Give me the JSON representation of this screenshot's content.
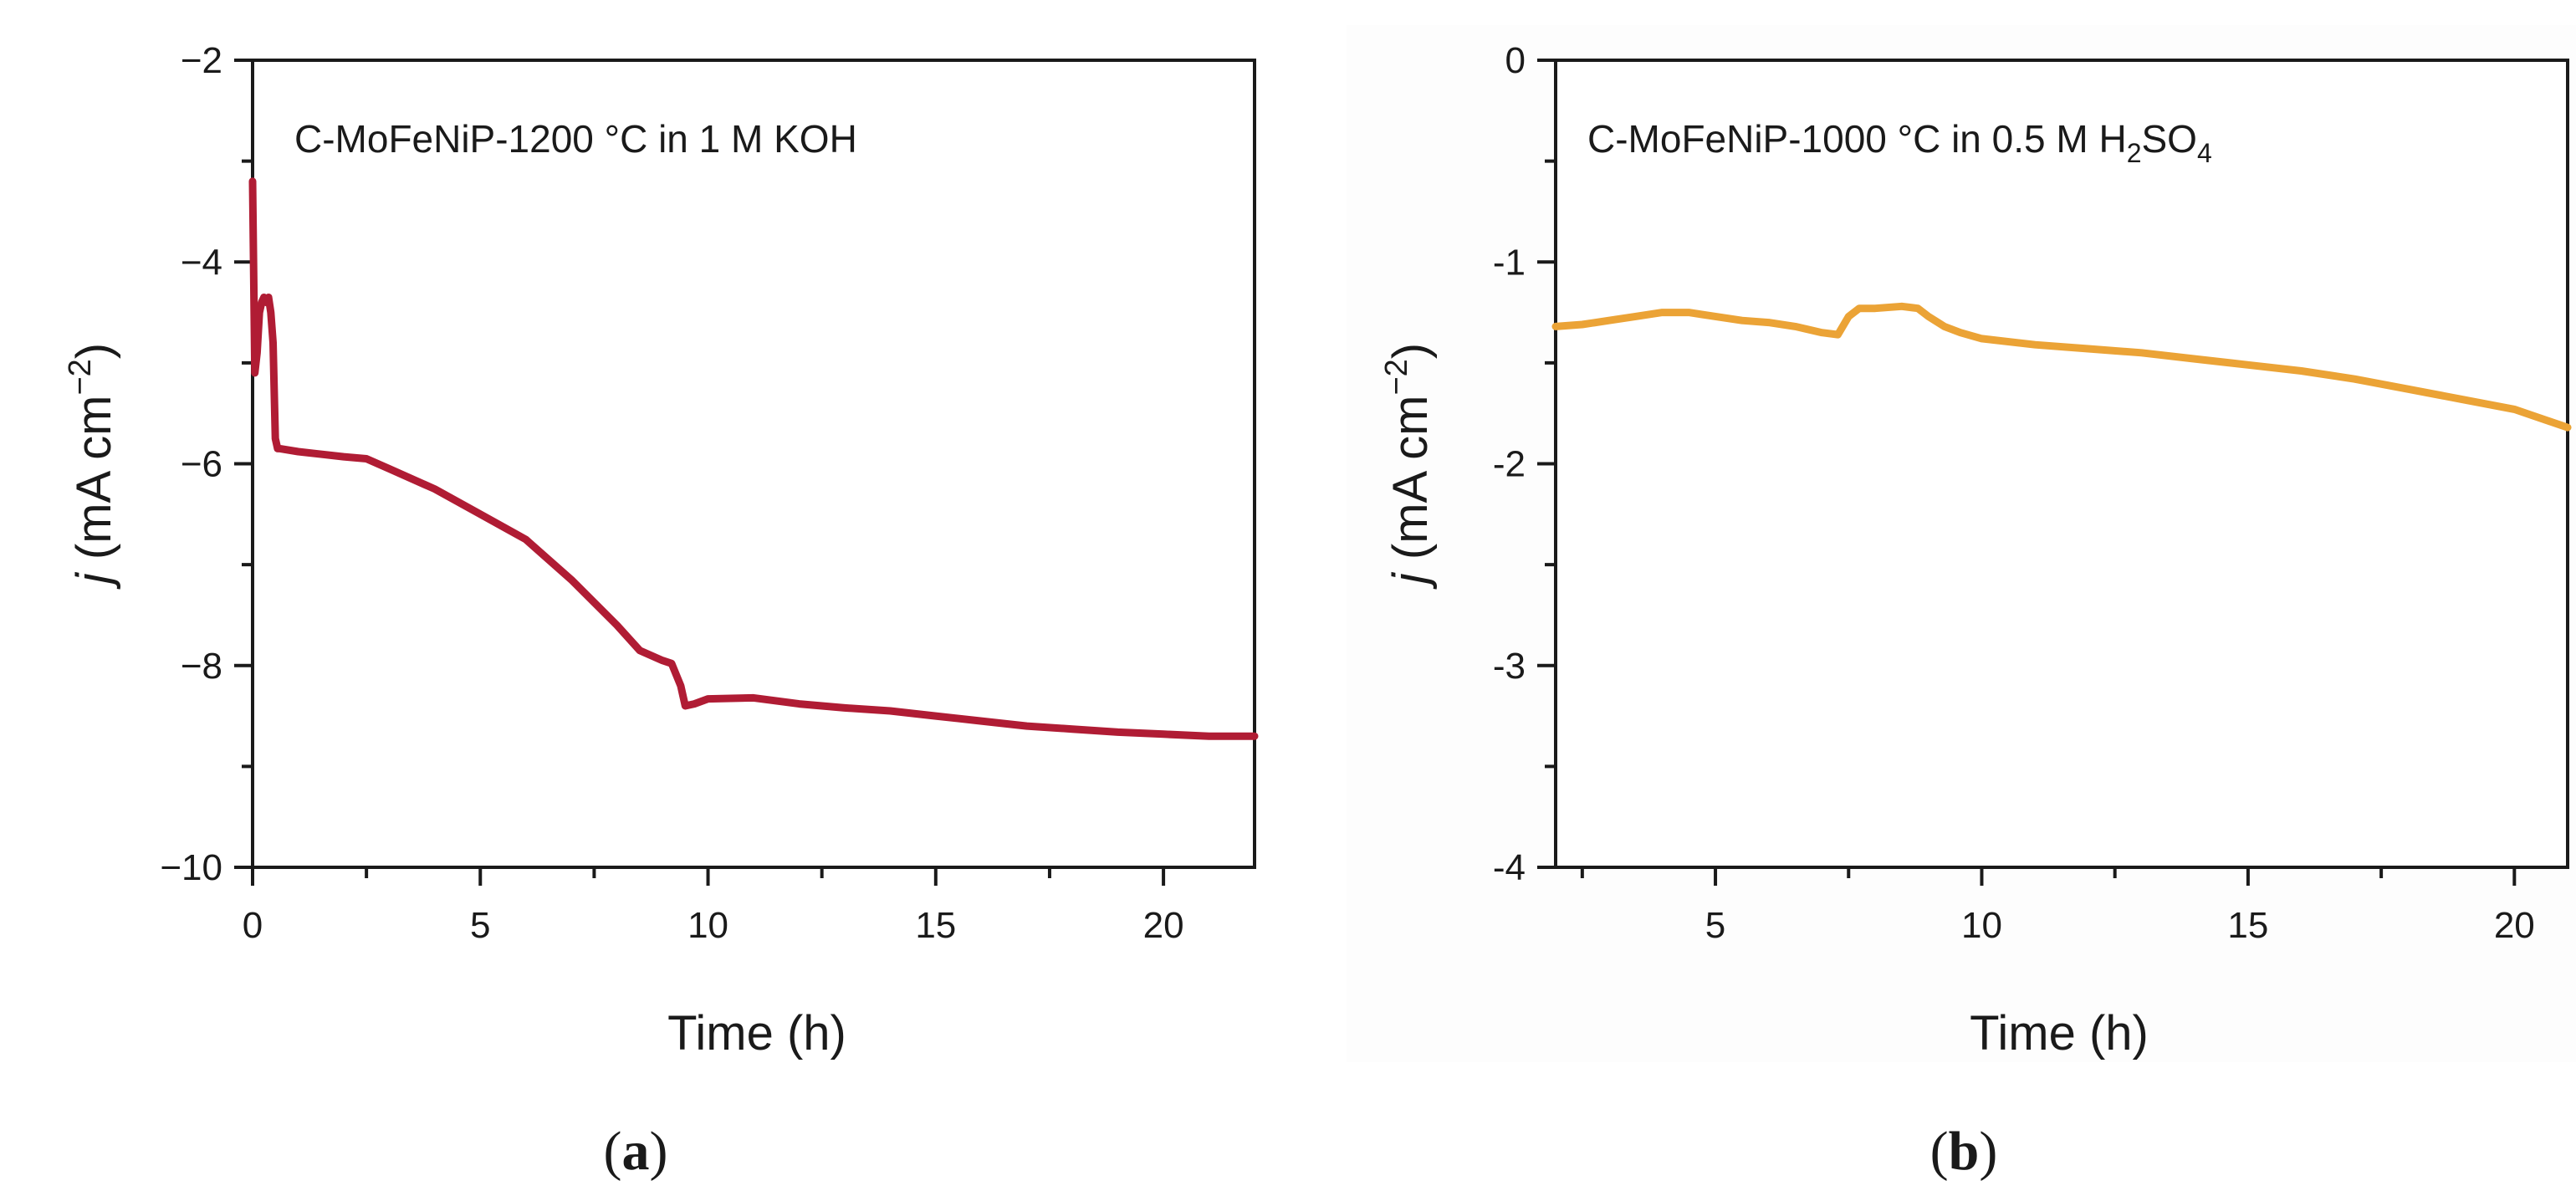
{
  "chart_data": [
    {
      "id": "a",
      "type": "line",
      "panel_label": "a",
      "annotation": "C-MoFeNiP-1200 °C in 1 M KOH",
      "xlabel": "Time (h)",
      "ylabel_italic": "j",
      "ylabel_rest": " (mA cm",
      "ylabel_exp": "−2",
      "ylabel_close": ")",
      "xlim": [
        0,
        22
      ],
      "ylim": [
        -10,
        -2
      ],
      "xticks": [
        0,
        5,
        10,
        15,
        20
      ],
      "xtick_labels": [
        "0",
        "5",
        "10",
        "15",
        "20"
      ],
      "yticks": [
        -10,
        -8,
        -6,
        -4,
        -2
      ],
      "ytick_labels": [
        "−10",
        "−8",
        "−6",
        "−4",
        "−2"
      ],
      "yticks_minor": [
        -9,
        -7,
        -5,
        -3
      ],
      "xticks_minor": [
        2.5,
        7.5,
        12.5,
        17.5
      ],
      "color": "#b01c34",
      "series": [
        {
          "name": "C-MoFeNiP-1200 °C in 1 M KOH",
          "x": [
            0,
            0.05,
            0.1,
            0.15,
            0.2,
            0.25,
            0.3,
            0.35,
            0.4,
            0.45,
            0.5,
            0.55,
            0.6,
            1.0,
            2.0,
            2.5,
            3.0,
            4.0,
            5.0,
            6.0,
            7.0,
            8.0,
            8.5,
            9.0,
            9.2,
            9.4,
            9.5,
            9.7,
            10.0,
            11.0,
            12.0,
            13.0,
            14.0,
            15.0,
            16.0,
            17.0,
            18.0,
            19.0,
            20.0,
            21.0,
            22.0
          ],
          "y": [
            -3.2,
            -5.1,
            -4.9,
            -4.5,
            -4.4,
            -4.35,
            -4.4,
            -4.35,
            -4.5,
            -4.8,
            -5.75,
            -5.85,
            -5.85,
            -5.88,
            -5.93,
            -5.95,
            -6.05,
            -6.25,
            -6.5,
            -6.75,
            -7.15,
            -7.6,
            -7.85,
            -7.95,
            -7.98,
            -8.2,
            -8.4,
            -8.38,
            -8.33,
            -8.32,
            -8.38,
            -8.42,
            -8.45,
            -8.5,
            -8.55,
            -8.6,
            -8.63,
            -8.66,
            -8.68,
            -8.7,
            -8.7
          ]
        }
      ]
    },
    {
      "id": "b",
      "type": "line",
      "panel_label": "b",
      "annotation_main": "C-MoFeNiP-1000 °C in 0.5 M H",
      "annotation_sub1": "2",
      "annotation_mid": "SO",
      "annotation_sub2": "4",
      "xlabel": "Time (h)",
      "ylabel_italic": "j",
      "ylabel_rest": " (mA cm",
      "ylabel_exp": "−2",
      "ylabel_close": ")",
      "xlim": [
        2,
        21
      ],
      "ylim": [
        -4,
        0
      ],
      "xticks": [
        5,
        10,
        15,
        20
      ],
      "xtick_labels": [
        "5",
        "10",
        "15",
        "20"
      ],
      "yticks": [
        -4,
        -3,
        -2,
        -1,
        0
      ],
      "ytick_labels": [
        "-4",
        "-3",
        "-2",
        "-1",
        "0"
      ],
      "yticks_minor": [
        -3.5,
        -2.5,
        -1.5,
        -0.5
      ],
      "xticks_minor": [
        2.5,
        7.5,
        12.5,
        17.5
      ],
      "color": "#eba336",
      "series": [
        {
          "name": "C-MoFeNiP-1000 °C in 0.5 M H2SO4",
          "x": [
            2.0,
            2.5,
            3.0,
            3.5,
            4.0,
            4.5,
            5.0,
            5.5,
            6.0,
            6.5,
            7.0,
            7.3,
            7.5,
            7.7,
            8.0,
            8.5,
            8.8,
            9.0,
            9.3,
            9.6,
            10.0,
            11.0,
            12.0,
            13.0,
            14.0,
            15.0,
            16.0,
            17.0,
            18.0,
            19.0,
            20.0,
            21.0
          ],
          "y": [
            -1.32,
            -1.31,
            -1.29,
            -1.27,
            -1.25,
            -1.25,
            -1.27,
            -1.29,
            -1.3,
            -1.32,
            -1.35,
            -1.36,
            -1.27,
            -1.23,
            -1.23,
            -1.22,
            -1.23,
            -1.27,
            -1.32,
            -1.35,
            -1.38,
            -1.41,
            -1.43,
            -1.45,
            -1.48,
            -1.51,
            -1.54,
            -1.58,
            -1.63,
            -1.68,
            -1.73,
            -1.82
          ]
        }
      ]
    }
  ]
}
